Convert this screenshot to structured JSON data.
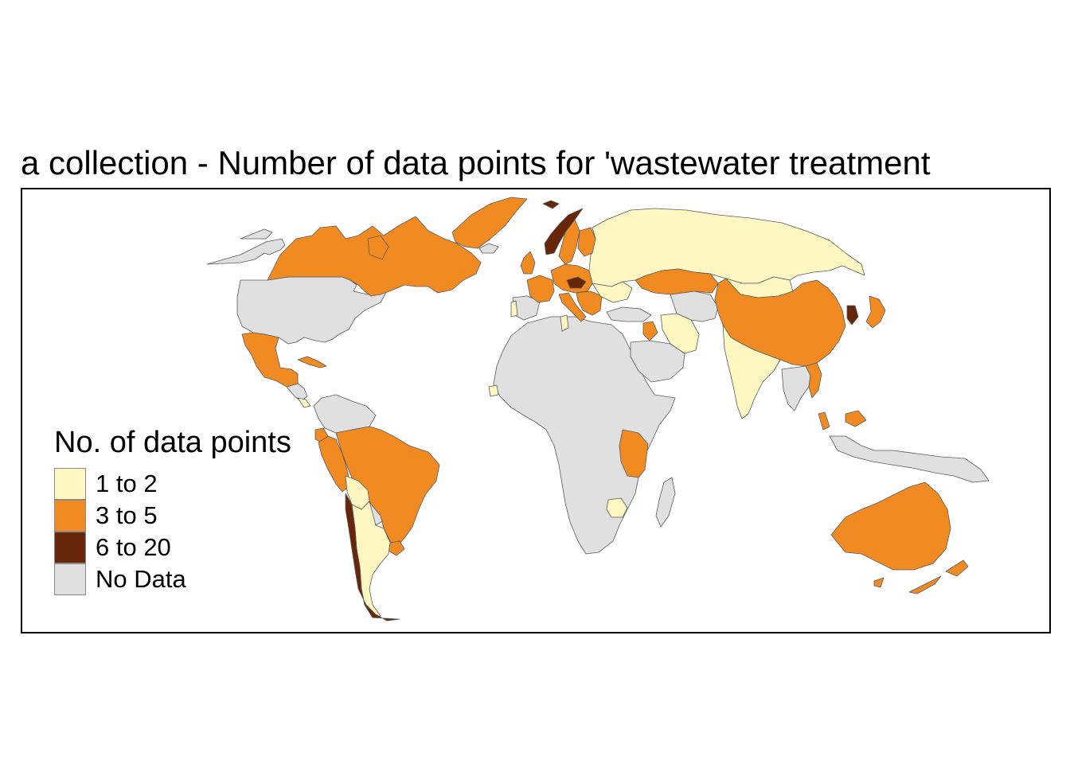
{
  "title": "a collection - Number of data points for 'wastewater treatment",
  "legend": {
    "title": "No. of data points",
    "items": [
      {
        "label": "1 to 2",
        "color": "#FFF7C2"
      },
      {
        "label": "3 to 5",
        "color": "#F28A22"
      },
      {
        "label": "6 to 20",
        "color": "#67260A"
      },
      {
        "label": "No Data",
        "color": "#E0E0E0"
      }
    ]
  },
  "colors": {
    "no_data": "#E0E0E0",
    "low": "#FFF7C2",
    "mid": "#F28A22",
    "high": "#67260A",
    "border": "#5A5A5A",
    "frame": "#000000"
  },
  "regions": [
    {
      "name": "Canada",
      "class": "3 to 5"
    },
    {
      "name": "Greenland",
      "class": "3 to 5"
    },
    {
      "name": "Alaska",
      "class": "No Data"
    },
    {
      "name": "United States",
      "class": "No Data"
    },
    {
      "name": "Mexico",
      "class": "3 to 5"
    },
    {
      "name": "Cuba",
      "class": "3 to 5"
    },
    {
      "name": "Central America",
      "class": "No Data"
    },
    {
      "name": "Costa Rica",
      "class": "1 to 2"
    },
    {
      "name": "Colombia and Venezuela",
      "class": "No Data"
    },
    {
      "name": "Ecuador",
      "class": "3 to 5"
    },
    {
      "name": "Peru",
      "class": "3 to 5"
    },
    {
      "name": "Brazil",
      "class": "3 to 5"
    },
    {
      "name": "Bolivia",
      "class": "1 to 2"
    },
    {
      "name": "Paraguay",
      "class": "No Data"
    },
    {
      "name": "Uruguay",
      "class": "3 to 5"
    },
    {
      "name": "Argentina",
      "class": "1 to 2"
    },
    {
      "name": "Chile",
      "class": "6 to 20"
    },
    {
      "name": "Russia",
      "class": "1 to 2"
    },
    {
      "name": "Norway",
      "class": "6 to 20"
    },
    {
      "name": "Sweden",
      "class": "3 to 5"
    },
    {
      "name": "Finland",
      "class": "3 to 5"
    },
    {
      "name": "Svalbard",
      "class": "6 to 20"
    },
    {
      "name": "United Kingdom",
      "class": "3 to 5"
    },
    {
      "name": "France",
      "class": "3 to 5"
    },
    {
      "name": "Spain",
      "class": "No Data"
    },
    {
      "name": "Portugal",
      "class": "1 to 2"
    },
    {
      "name": "Central Europe",
      "class": "3 to 5"
    },
    {
      "name": "Czechia",
      "class": "6 to 20"
    },
    {
      "name": "Italy",
      "class": "3 to 5"
    },
    {
      "name": "Balkans",
      "class": "3 to 5"
    },
    {
      "name": "Ukraine",
      "class": "1 to 2"
    },
    {
      "name": "Turkey",
      "class": "No Data"
    },
    {
      "name": "Israel and Lebanon",
      "class": "3 to 5"
    },
    {
      "name": "Iran",
      "class": "1 to 2"
    },
    {
      "name": "Kazakhstan",
      "class": "3 to 5"
    },
    {
      "name": "Mongolia",
      "class": "1 to 2"
    },
    {
      "name": "China",
      "class": "3 to 5"
    },
    {
      "name": "India",
      "class": "1 to 2"
    },
    {
      "name": "South Korea",
      "class": "6 to 20"
    },
    {
      "name": "Japan",
      "class": "3 to 5"
    },
    {
      "name": "Vietnam",
      "class": "3 to 5"
    },
    {
      "name": "Southeast Asia",
      "class": "No Data"
    },
    {
      "name": "Malaysia",
      "class": "3 to 5"
    },
    {
      "name": "Indonesia",
      "class": "No Data"
    },
    {
      "name": "Australia",
      "class": "3 to 5"
    },
    {
      "name": "New Zealand",
      "class": "3 to 5"
    },
    {
      "name": "Africa",
      "class": "No Data"
    },
    {
      "name": "Tanzania",
      "class": "3 to 5"
    },
    {
      "name": "Zimbabwe",
      "class": "1 to 2"
    },
    {
      "name": "Madagascar",
      "class": "No Data"
    },
    {
      "name": "Tunisia",
      "class": "1 to 2"
    },
    {
      "name": "Ghana",
      "class": "1 to 2"
    },
    {
      "name": "Saudi Arabia and Gulf",
      "class": "No Data"
    },
    {
      "name": "Central Asia",
      "class": "No Data"
    },
    {
      "name": "Iceland",
      "class": "No Data"
    }
  ]
}
